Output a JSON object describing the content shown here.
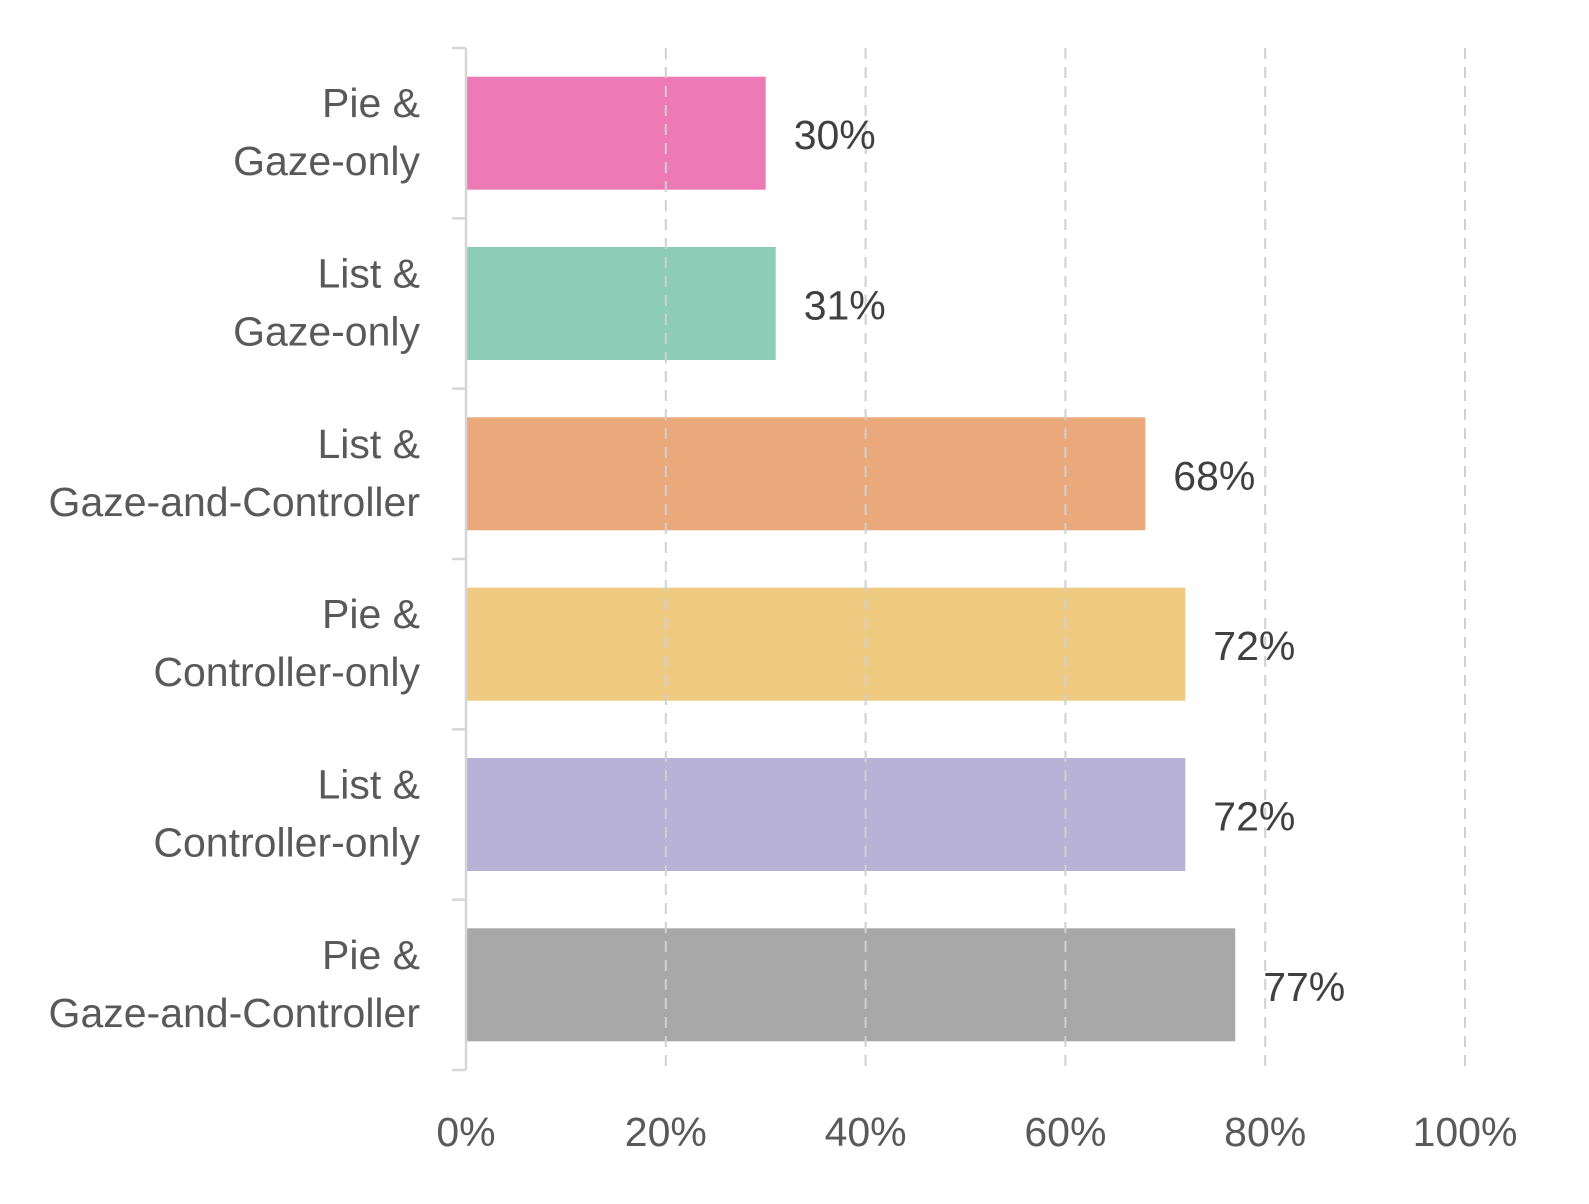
{
  "chart_data": {
    "type": "bar",
    "orientation": "horizontal",
    "title": "",
    "xlabel": "",
    "ylabel": "",
    "xlim": [
      0,
      100
    ],
    "x_ticks": [
      0,
      20,
      40,
      60,
      80,
      100
    ],
    "x_tick_labels": [
      "0%",
      "20%",
      "40%",
      "60%",
      "80%",
      "100%"
    ],
    "grid": "vertical dashed",
    "legend": "none",
    "categories": [
      {
        "line1": "Pie &",
        "line2": "Gaze-only"
      },
      {
        "line1": "List &",
        "line2": "Gaze-only"
      },
      {
        "line1": "List &",
        "line2": "Gaze-and-Controller"
      },
      {
        "line1": "Pie &",
        "line2": "Controller-only"
      },
      {
        "line1": "List &",
        "line2": "Controller-only"
      },
      {
        "line1": "Pie &",
        "line2": "Gaze-and-Controller"
      }
    ],
    "values": [
      30,
      31,
      68,
      72,
      72,
      77
    ],
    "value_labels": [
      "30%",
      "31%",
      "68%",
      "72%",
      "72%",
      "77%"
    ],
    "colors": [
      "#ee7ab5",
      "#8dcdb7",
      "#eaa97b",
      "#eecb80",
      "#b8b3d6",
      "#a8a8a8"
    ]
  }
}
